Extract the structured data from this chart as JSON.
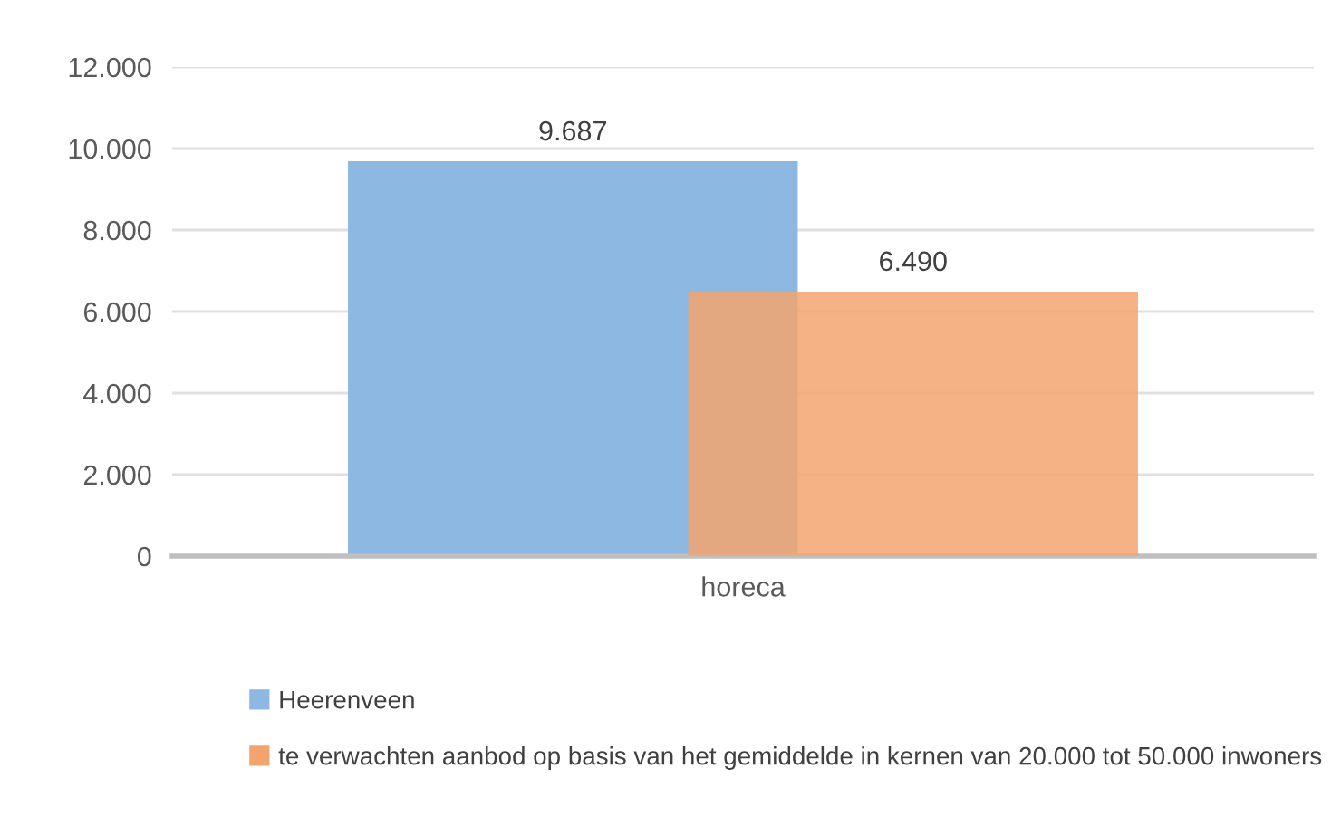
{
  "chart_data": {
    "type": "bar",
    "categories": [
      "horeca"
    ],
    "series": [
      {
        "name": "Heerenveen",
        "color": "#8db8e2",
        "values": [
          9687
        ],
        "value_labels": [
          "9.687"
        ]
      },
      {
        "name": "te verwachten aanbod op basis van het gemiddelde in kernen van 20.000 tot 50.000 inwoners",
        "color": "#f3a46e",
        "values": [
          6490
        ],
        "value_labels": [
          "6.490"
        ]
      }
    ],
    "ylim": [
      0,
      12000
    ],
    "yticks": [
      {
        "value": 0,
        "label": "0"
      },
      {
        "value": 2000,
        "label": "2.000"
      },
      {
        "value": 4000,
        "label": "4.000"
      },
      {
        "value": 6000,
        "label": "6.000"
      },
      {
        "value": 8000,
        "label": "8.000"
      },
      {
        "value": 10000,
        "label": "10.000"
      },
      {
        "value": 12000,
        "label": "12.000"
      }
    ],
    "grid": "y",
    "legend": "bottom"
  }
}
